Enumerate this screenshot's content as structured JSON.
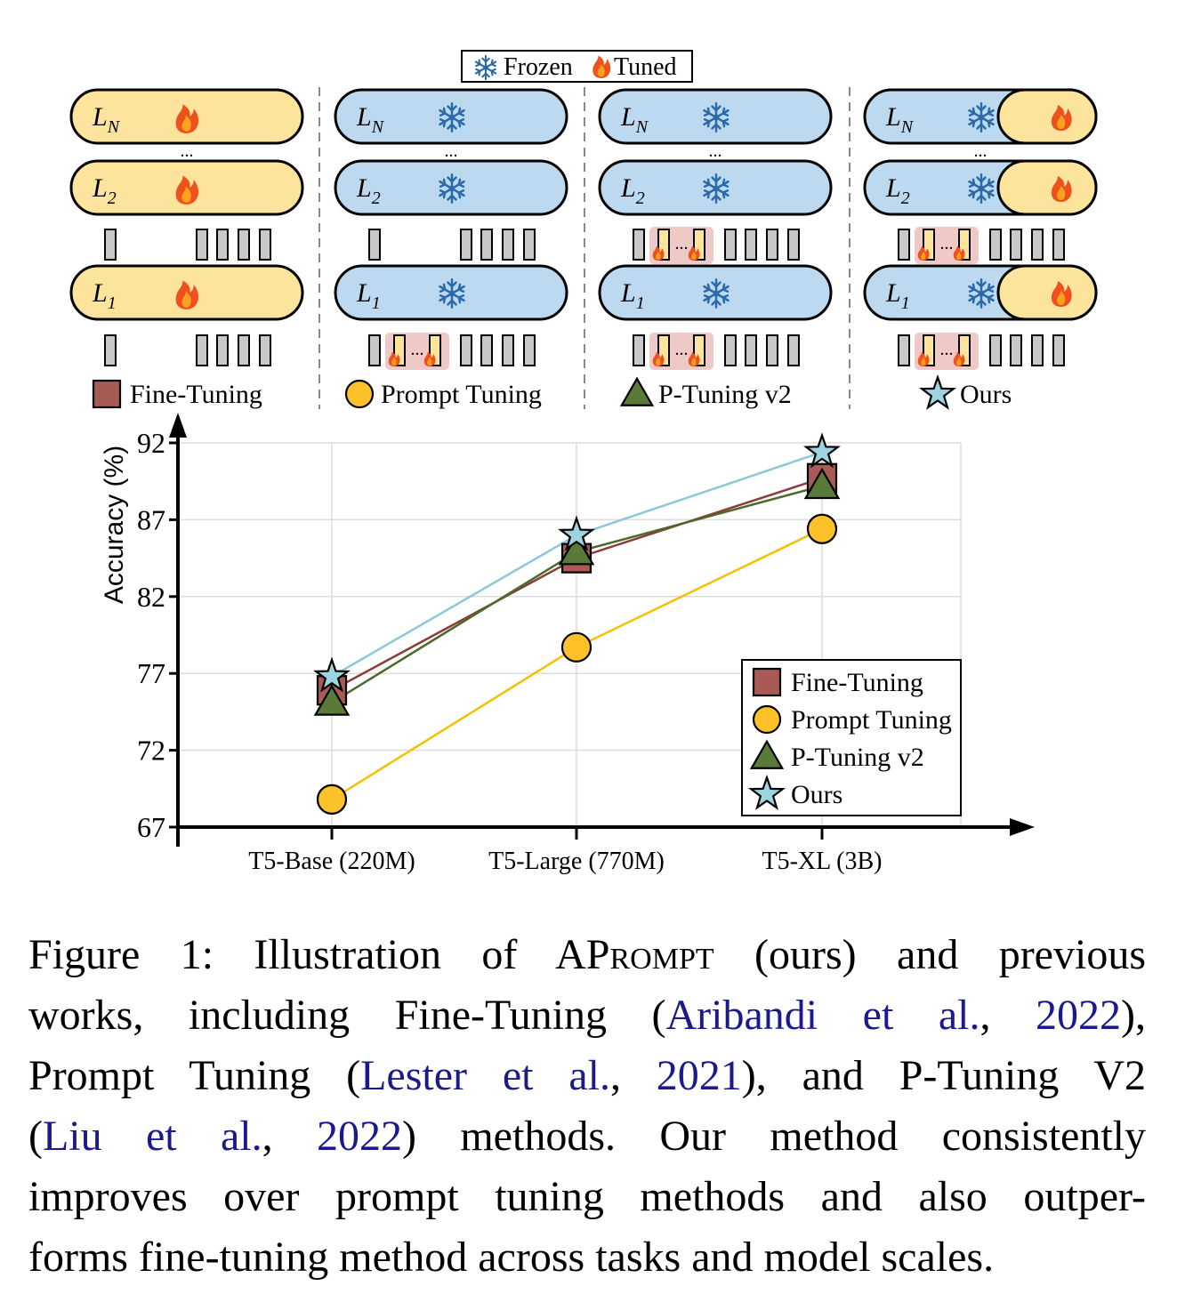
{
  "legend_top": {
    "frozen": "Frozen",
    "tuned": "Tuned"
  },
  "method_titles": [
    "Fine-Tuning",
    "Prompt Tuning",
    "P-Tuning v2",
    "Ours"
  ],
  "layer_labels": {
    "n": "N",
    "two": "2",
    "one": "1",
    "base": "L",
    "dots": "..."
  },
  "colors": {
    "fine_tuning": "#a85a55",
    "prompt_tuning": "#fdc12a",
    "p_tuning_v2": "#5a7a3a",
    "ours": "#9ed3e0",
    "layer_tuned": "#fde49c",
    "layer_frozen": "#bcd9f0",
    "prompt_bg": "#efc9c6"
  },
  "chart_data": {
    "type": "line",
    "categories": [
      "T5-Base (220M)",
      "T5-Large (770M)",
      "T5-XL (3B)"
    ],
    "ylabel": "Accuracy (%)",
    "xlabel": "",
    "ylim": [
      67,
      92
    ],
    "yticks": [
      67,
      72,
      77,
      82,
      87,
      92
    ],
    "grid": true,
    "legend_position": "bottom-right",
    "series": [
      {
        "name": "Fine-Tuning",
        "marker": "square",
        "color": "#a85a55",
        "values": [
          75.9,
          84.5,
          89.7
        ]
      },
      {
        "name": "Prompt Tuning",
        "marker": "circle",
        "color": "#fdc12a",
        "values": [
          68.8,
          78.7,
          86.4
        ]
      },
      {
        "name": "P-Tuning v2",
        "marker": "triangle",
        "color": "#5a7a3a",
        "values": [
          75.1,
          84.9,
          89.2
        ]
      },
      {
        "name": "Ours",
        "marker": "star",
        "color": "#9ed3e0",
        "values": [
          76.8,
          86.0,
          91.4
        ]
      }
    ]
  },
  "caption": {
    "l1a": "Figure 1: Illustration of AP",
    "l1sc": "rompt",
    "l1b": " (ours) and previous",
    "l2a": "works, including Fine-Tuning (",
    "l2c1": "Aribandi et al.",
    "l2m": ", ",
    "l2c2": "2022",
    "l2b": "),",
    "l3a": "Prompt Tuning (",
    "l3c1": "Lester et al.",
    "l3m": ", ",
    "l3c2": "2021",
    "l3b": "), and P-Tuning V2",
    "l4a": "(",
    "l4c1": "Liu et al.",
    "l4m": ", ",
    "l4c2": "2022",
    "l4b": ") methods.  Our method consistently",
    "l5": "improves over prompt tuning methods and also outper-",
    "l6": "forms fine-tuning method across tasks and model scales."
  }
}
